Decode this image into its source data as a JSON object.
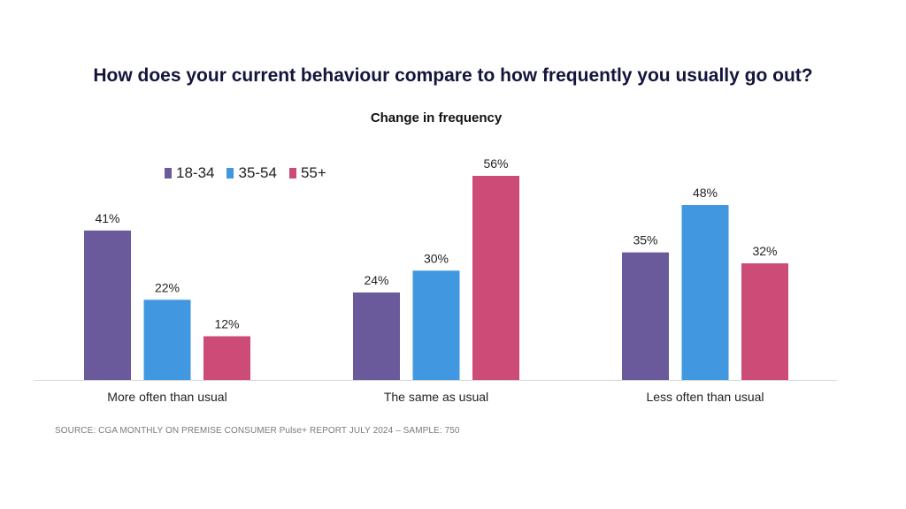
{
  "title": "How does your current behaviour compare to how frequently you usually go out?",
  "subtitle": "Change in frequency",
  "source": "SOURCE:  CGA MONTHLY  ON PREMISE CONSUMER Pulse+ REPORT JULY 2024  – SAMPLE: 750",
  "legend": [
    {
      "label": "18-34",
      "color": "#6a5a9b"
    },
    {
      "label": "35-54",
      "color": "#4198e0"
    },
    {
      "label": "55+",
      "color": "#cc4b77"
    }
  ],
  "chart_data": {
    "type": "bar",
    "title": "Change in frequency",
    "categories": [
      "More often than usual",
      "The same as usual",
      "Less often than usual"
    ],
    "series": [
      {
        "name": "18-34",
        "values": [
          41,
          24,
          35
        ],
        "color": "#6a5a9b"
      },
      {
        "name": "35-54",
        "values": [
          22,
          30,
          48
        ],
        "color": "#4198e0"
      },
      {
        "name": "55+",
        "values": [
          12,
          56,
          32
        ],
        "color": "#cc4b77"
      }
    ],
    "value_suffix": "%",
    "ylim": [
      0,
      56
    ],
    "xlabel": "",
    "ylabel": "",
    "grid": false,
    "legend_position": "top-left"
  }
}
